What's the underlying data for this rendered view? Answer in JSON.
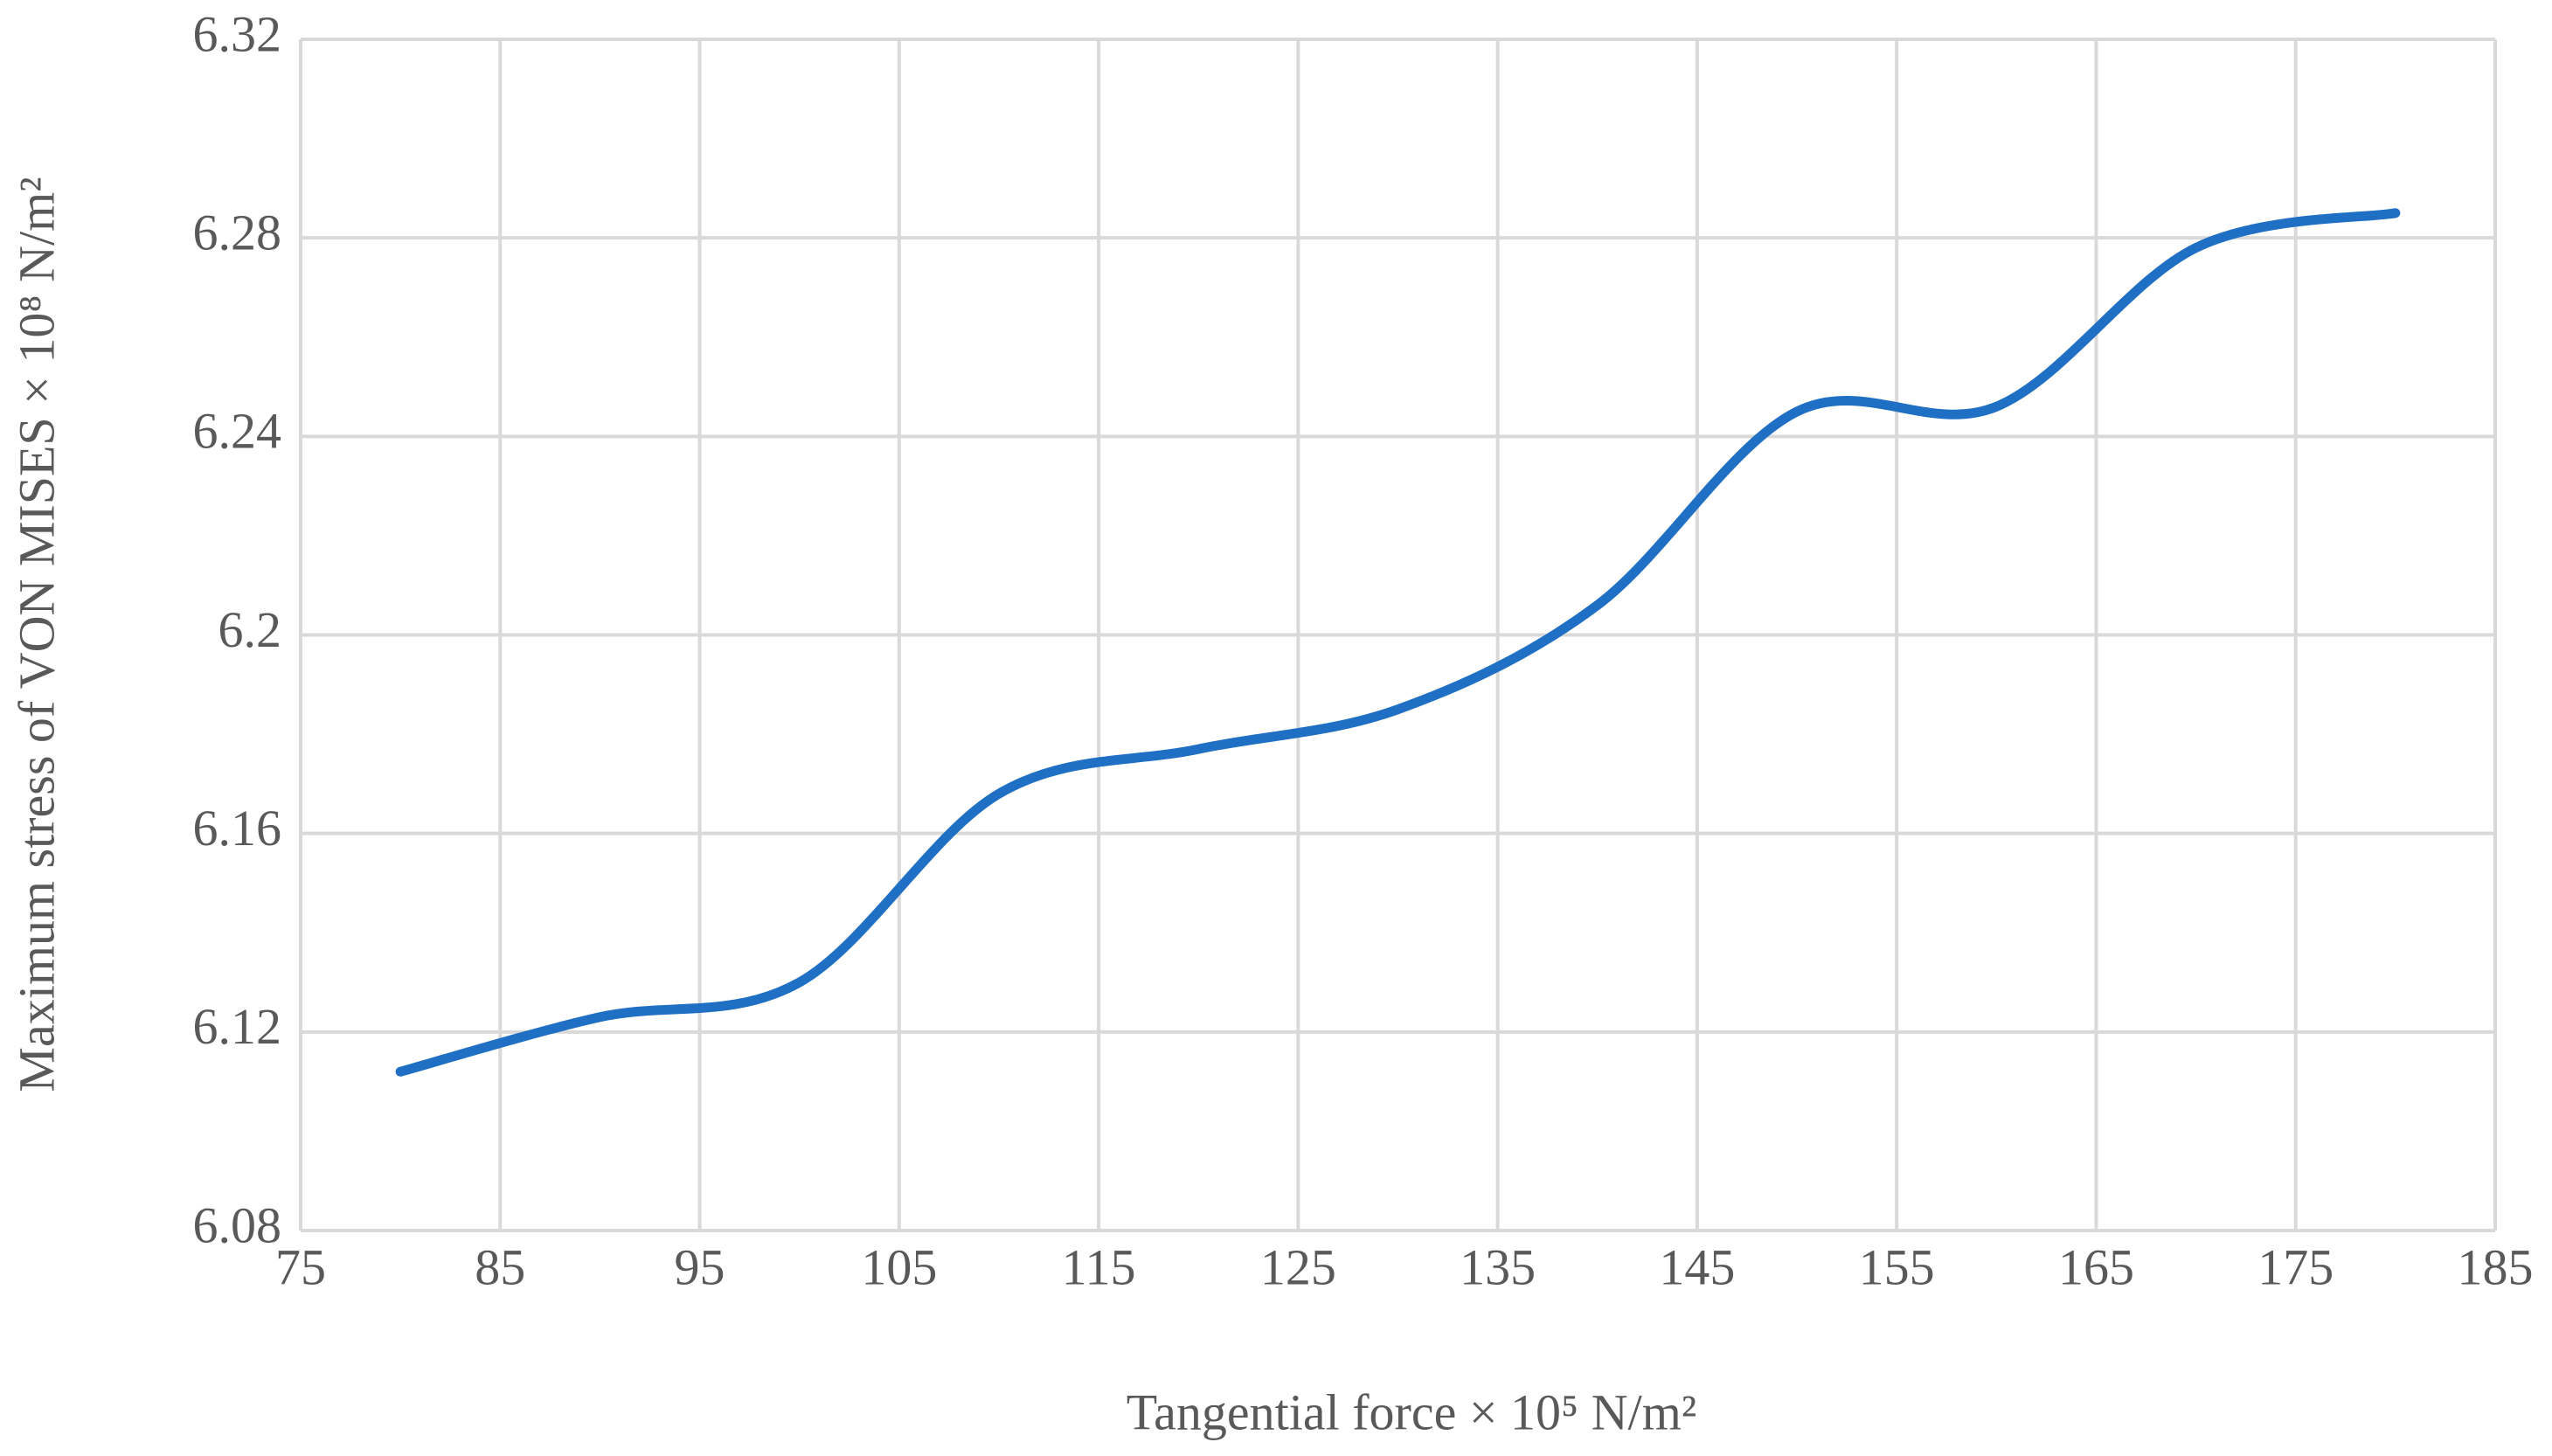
{
  "chart_data": {
    "type": "line",
    "x_label": "Tangential force × 10⁵ N/m²",
    "y_label": "Maximum stress of VON MISES × 10⁸ N/m²",
    "x": [
      80,
      90,
      100,
      110,
      120,
      130,
      140,
      150,
      160,
      170,
      180
    ],
    "series": [
      {
        "name": "Maximum stress",
        "color": "#1f6fc5",
        "values": [
          6.112,
          6.123,
          6.13,
          6.168,
          6.177,
          6.185,
          6.206,
          6.245,
          6.246,
          6.278,
          6.285
        ]
      }
    ],
    "xlim": [
      75,
      185
    ],
    "xticks": [
      75,
      85,
      95,
      105,
      115,
      125,
      135,
      145,
      155,
      165,
      175,
      185
    ],
    "ylim": [
      6.08,
      6.32
    ],
    "yticks": [
      6.08,
      6.12,
      6.16,
      6.2,
      6.24,
      6.28,
      6.32
    ],
    "grid": true,
    "smooth": true
  }
}
